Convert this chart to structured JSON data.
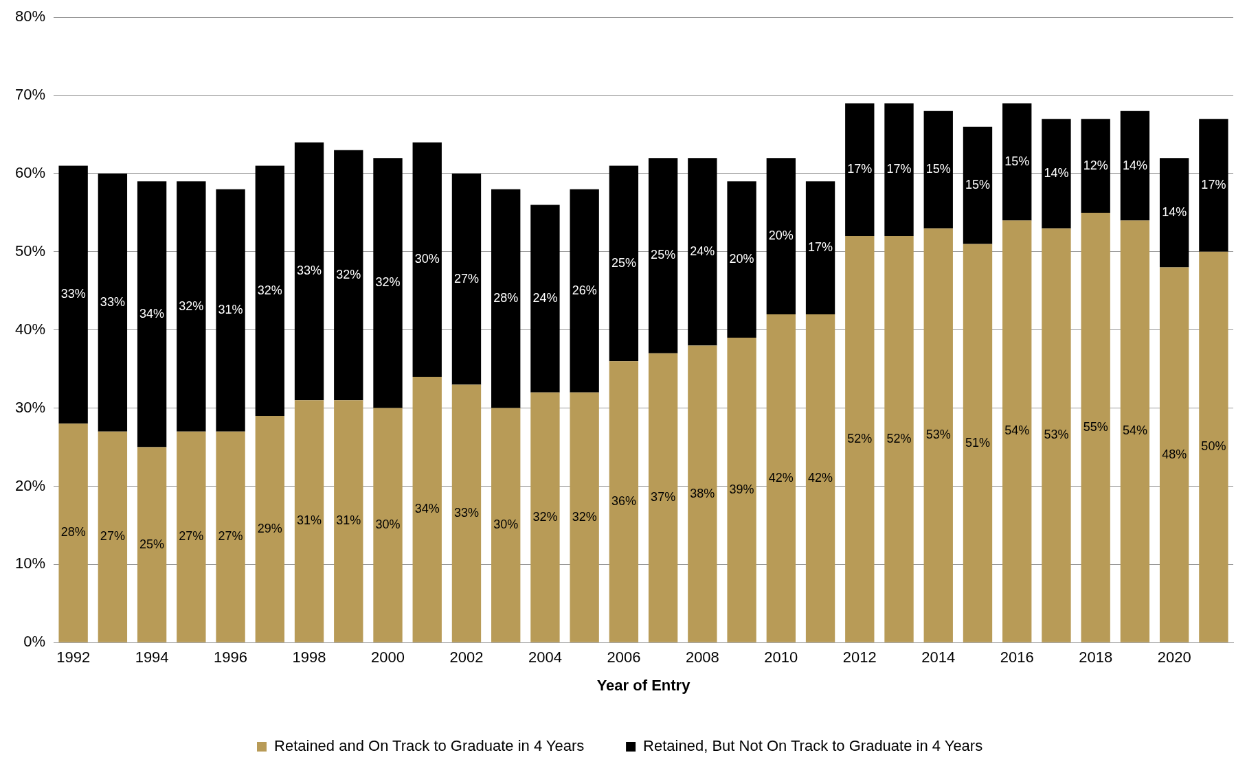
{
  "chart_data": {
    "type": "bar",
    "stacked": true,
    "xlabel": "Year of Entry",
    "categories": [
      "1992",
      null,
      "1994",
      null,
      "1996",
      null,
      "1998",
      null,
      "2000",
      null,
      "2002",
      null,
      "2004",
      null,
      "2006",
      null,
      "2008",
      null,
      "2010",
      null,
      "2012",
      null,
      "2014",
      null,
      "2016",
      null,
      "2018",
      null,
      "2020",
      null
    ],
    "series": [
      {
        "name": "Retained and On Track to Graduate in 4 Years",
        "color": "#b89b57",
        "values": [
          28,
          27,
          25,
          27,
          27,
          29,
          31,
          31,
          30,
          34,
          33,
          30,
          32,
          32,
          36,
          37,
          38,
          39,
          42,
          42,
          52,
          52,
          53,
          51,
          54,
          53,
          55,
          54,
          48,
          50
        ],
        "value_labels": [
          "28%",
          "27%",
          "25%",
          "27%",
          "27%",
          "29%",
          "31%",
          "31%",
          "30%",
          "34%",
          "33%",
          "30%",
          "32%",
          "32%",
          "36%",
          "37%",
          "38%",
          "39%",
          "42%",
          "42%",
          "52%",
          "52%",
          "53%",
          "51%",
          "54%",
          "53%",
          "55%",
          "54%",
          "48%",
          "50%"
        ]
      },
      {
        "name": "Retained, But Not On Track to Graduate in 4 Years",
        "color": "#000000",
        "values": [
          33,
          33,
          34,
          32,
          31,
          32,
          33,
          32,
          32,
          30,
          27,
          28,
          24,
          26,
          25,
          25,
          24,
          20,
          20,
          17,
          17,
          17,
          15,
          15,
          15,
          14,
          12,
          14,
          14,
          17
        ],
        "value_labels": [
          "33%",
          "33%",
          "34%",
          "32%",
          "31%",
          "32%",
          "33%",
          "32%",
          "32%",
          "30%",
          "27%",
          "28%",
          "24%",
          "26%",
          "25%",
          "25%",
          "24%",
          "20%",
          "20%",
          "17%",
          "17%",
          "17%",
          "15%",
          "15%",
          "15%",
          "14%",
          "12%",
          "14%",
          "14%",
          "17%"
        ]
      }
    ],
    "ylim": [
      0,
      80
    ],
    "yticks": [
      {
        "value": 0,
        "label": "0%"
      },
      {
        "value": 10,
        "label": "10%"
      },
      {
        "value": 20,
        "label": "20%"
      },
      {
        "value": 30,
        "label": "30%"
      },
      {
        "value": 40,
        "label": "40%"
      },
      {
        "value": 50,
        "label": "50%"
      },
      {
        "value": 60,
        "label": "60%"
      },
      {
        "value": 70,
        "label": "70%"
      },
      {
        "value": 80,
        "label": "80%"
      }
    ],
    "grid": "y",
    "legend": "bottom"
  }
}
